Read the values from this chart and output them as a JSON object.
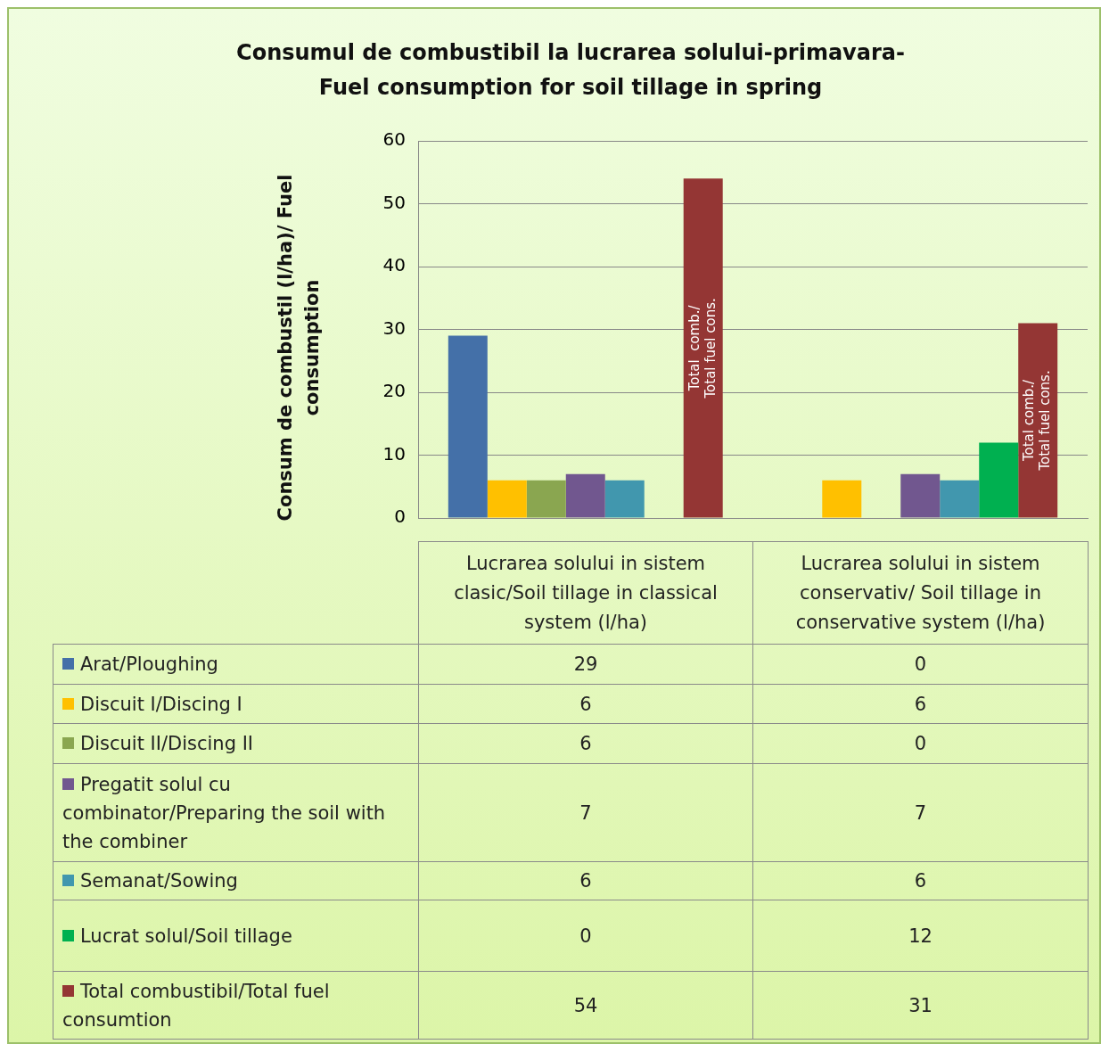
{
  "chart_data": {
    "type": "bar",
    "title": "Consumul de combustibil la lucrarea solului-primavara- Fuel consumption for soil tillage in spring",
    "ylabel": "Consum de combustil (l/ha)/ Fuel consumption",
    "categories": [
      "Lucrarea solului in sistem clasic/Soil tillage in classical system (l/ha)",
      "Lucrarea solului in sistem conservativ/ Soil tillage in conservative system (l/ha)"
    ],
    "series": [
      {
        "name": "Arat/Ploughing",
        "color": "#4470a8",
        "values": [
          29,
          0
        ]
      },
      {
        "name": "Discuit I/Discing I",
        "color": "#ffc000",
        "values": [
          6,
          6
        ]
      },
      {
        "name": "Discuit II/Discing II",
        "color": "#8aa650",
        "values": [
          6,
          0
        ]
      },
      {
        "name": "Pregatit solul cu combinator/Preparing the soil with the combiner",
        "color": "#71578f",
        "values": [
          7,
          7
        ]
      },
      {
        "name": "Semanat/Sowing",
        "color": "#4197ae",
        "values": [
          6,
          6
        ]
      },
      {
        "name": "Lucrat solul/Soil tillage",
        "color": "#00b050",
        "values": [
          0,
          12
        ]
      },
      {
        "name": "Total combustibil/Total fuel consumtion",
        "color": "#943634",
        "values": [
          54,
          31
        ]
      }
    ],
    "ylim": [
      0,
      60
    ],
    "yticks": [
      0,
      10,
      20,
      30,
      40,
      50,
      60
    ],
    "grid": "y",
    "legend": "bottom",
    "data_labels": true,
    "annotations": [
      "Total  comb./ Total fuel cons.",
      "Total comb./ Total fuel cons."
    ]
  }
}
